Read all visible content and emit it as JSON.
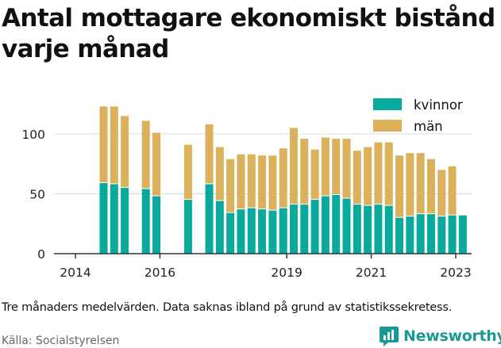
{
  "title": "Antal mottagare ekonomiskt bistånd varje månad",
  "note": "Tre månaders medelvärden. Data saknas ibland på grund av statistikssekretess.",
  "source": "Källa: Socialstyrelsen",
  "brand": "Newsworthy",
  "colors": {
    "kvinnor": "#0aa99d",
    "man": "#dbb15c",
    "axis": "#333333",
    "grid": "#dcdcdc",
    "brand": "#1a9a94"
  },
  "icons": {
    "brand_logo": "newsworthy-logo-icon"
  },
  "chart_data": {
    "type": "bar",
    "stacked": true,
    "xlabel": "",
    "ylabel": "",
    "ylim": [
      0,
      135
    ],
    "yticks": [
      0,
      50,
      100
    ],
    "xticks": [
      "2014",
      "2016",
      "2019",
      "2021",
      "2023"
    ],
    "legend_position": "top-right",
    "grid": true,
    "series": [
      {
        "name": "kvinnor",
        "color": "#0aa99d"
      },
      {
        "name": "män",
        "color": "#dbb15c"
      }
    ],
    "x": [
      "2014-09",
      "2014-12",
      "2015-03",
      "2015-09",
      "2015-12",
      "2016-09",
      "2017-03",
      "2017-06",
      "2017-09",
      "2017-12",
      "2018-03",
      "2018-06",
      "2018-09",
      "2018-12",
      "2019-03",
      "2019-06",
      "2019-09",
      "2019-12",
      "2020-03",
      "2020-06",
      "2020-09",
      "2020-12",
      "2021-03",
      "2021-06",
      "2021-09",
      "2021-12",
      "2022-03",
      "2022-06",
      "2022-09",
      "2022-12",
      "2023-03"
    ],
    "kvinnor": [
      59,
      58,
      55,
      54,
      48,
      45,
      58,
      44,
      34,
      37,
      38,
      37,
      36,
      38,
      41,
      41,
      45,
      48,
      49,
      46,
      41,
      40,
      41,
      40,
      30,
      31,
      33,
      33,
      31,
      32,
      32
    ],
    "man": [
      64,
      65,
      60,
      57,
      53,
      46,
      50,
      45,
      45,
      46,
      45,
      45,
      46,
      50,
      64,
      55,
      42,
      49,
      47,
      50,
      45,
      49,
      52,
      53,
      52,
      53,
      51,
      46,
      39,
      41,
      0
    ]
  }
}
